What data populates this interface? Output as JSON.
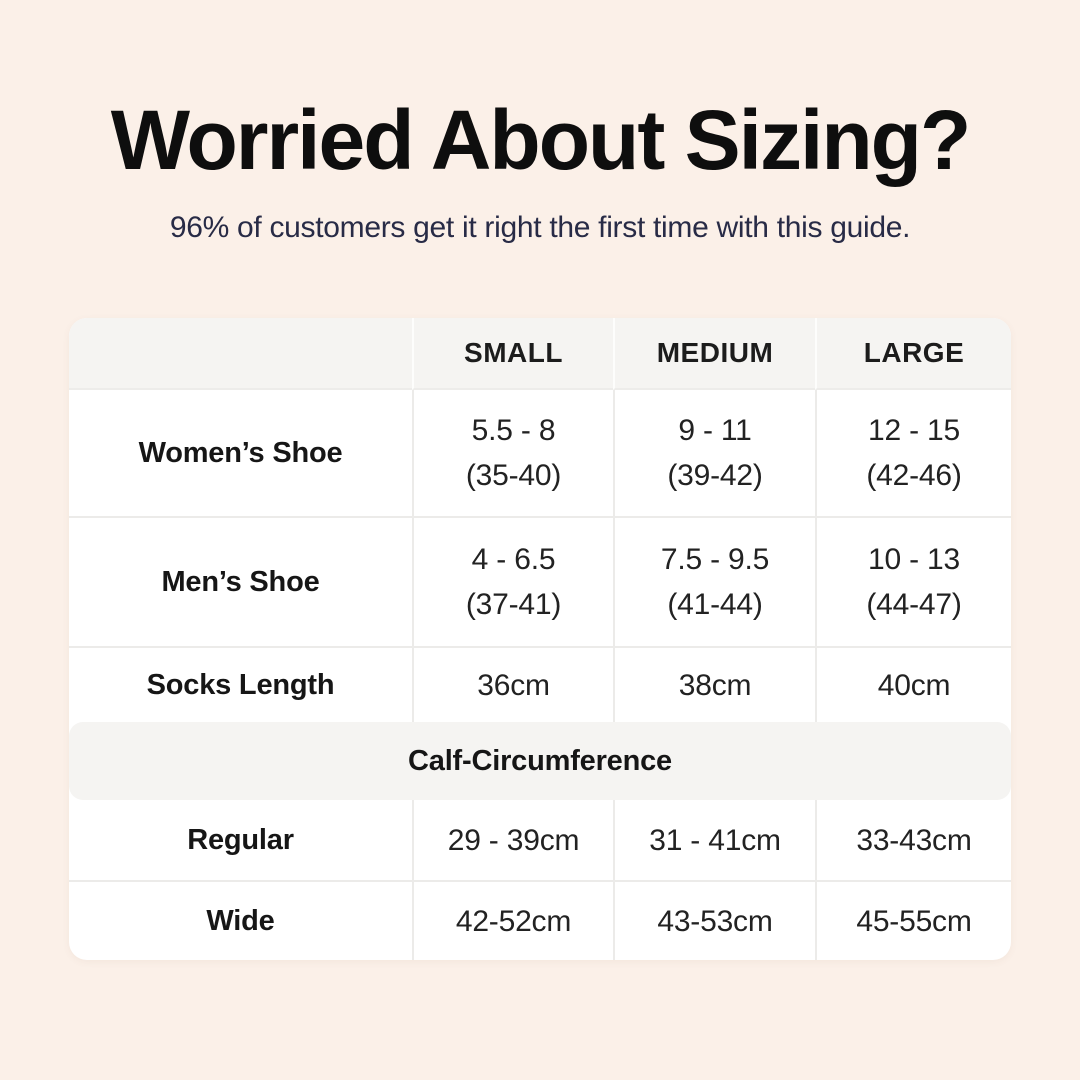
{
  "page": {
    "background_color": "#FBF0E8",
    "title": "Worried About Sizing?",
    "title_color": "#0E0E0E",
    "subtitle": "96% of customers get it right the first time with this guide.",
    "subtitle_color": "#282B46"
  },
  "table": {
    "background_color": "#FFFFFF",
    "header_bg_color": "#F5F4F2",
    "divider_color": "#ECEBE9",
    "header": {
      "col1": "",
      "col2": "SMALL",
      "col3": "MEDIUM",
      "col4": "LARGE"
    },
    "rows": [
      {
        "label": "Women’s Shoe",
        "small": "5.5 - 8\n(35-40)",
        "medium": "9 - 11\n(39-42)",
        "large": "12 - 15\n(42-46)"
      },
      {
        "label": "Men’s Shoe",
        "small": "4 - 6.5\n(37-41)",
        "medium": "7.5 - 9.5\n(41-44)",
        "large": "10 - 13\n(44-47)"
      },
      {
        "label": "Socks Length",
        "small": "36cm",
        "medium": "38cm",
        "large": "40cm"
      }
    ],
    "section_header": "Calf-Circumference",
    "section_rows": [
      {
        "label": "Regular",
        "small": "29 - 39cm",
        "medium": "31 - 41cm",
        "large": "33-43cm"
      },
      {
        "label": "Wide",
        "small": "42-52cm",
        "medium": "43-53cm",
        "large": "45-55cm"
      }
    ]
  },
  "chart_data": {
    "type": "table",
    "title": "Worried About Sizing?",
    "subtitle": "96% of customers get it right the first time with this guide.",
    "columns": [
      "",
      "SMALL",
      "MEDIUM",
      "LARGE"
    ],
    "rows": [
      [
        "Women’s Shoe",
        "5.5 - 8 (35-40)",
        "9 - 11 (39-42)",
        "12 - 15 (42-46)"
      ],
      [
        "Men’s Shoe",
        "4 - 6.5 (37-41)",
        "7.5 - 9.5 (41-44)",
        "10 - 13 (44-47)"
      ],
      [
        "Socks Length",
        "36cm",
        "38cm",
        "40cm"
      ],
      [
        "Calf-Circumference",
        "",
        "",
        ""
      ],
      [
        "Regular",
        "29 - 39cm",
        "31 - 41cm",
        "33-43cm"
      ],
      [
        "Wide",
        "42-52cm",
        "43-53cm",
        "45-55cm"
      ]
    ],
    "layout_hints": {
      "section_header_row_index": 3,
      "header_background": "#F5F4F2",
      "body_background": "#FFFFFF",
      "page_background": "#FBF0E8"
    }
  }
}
